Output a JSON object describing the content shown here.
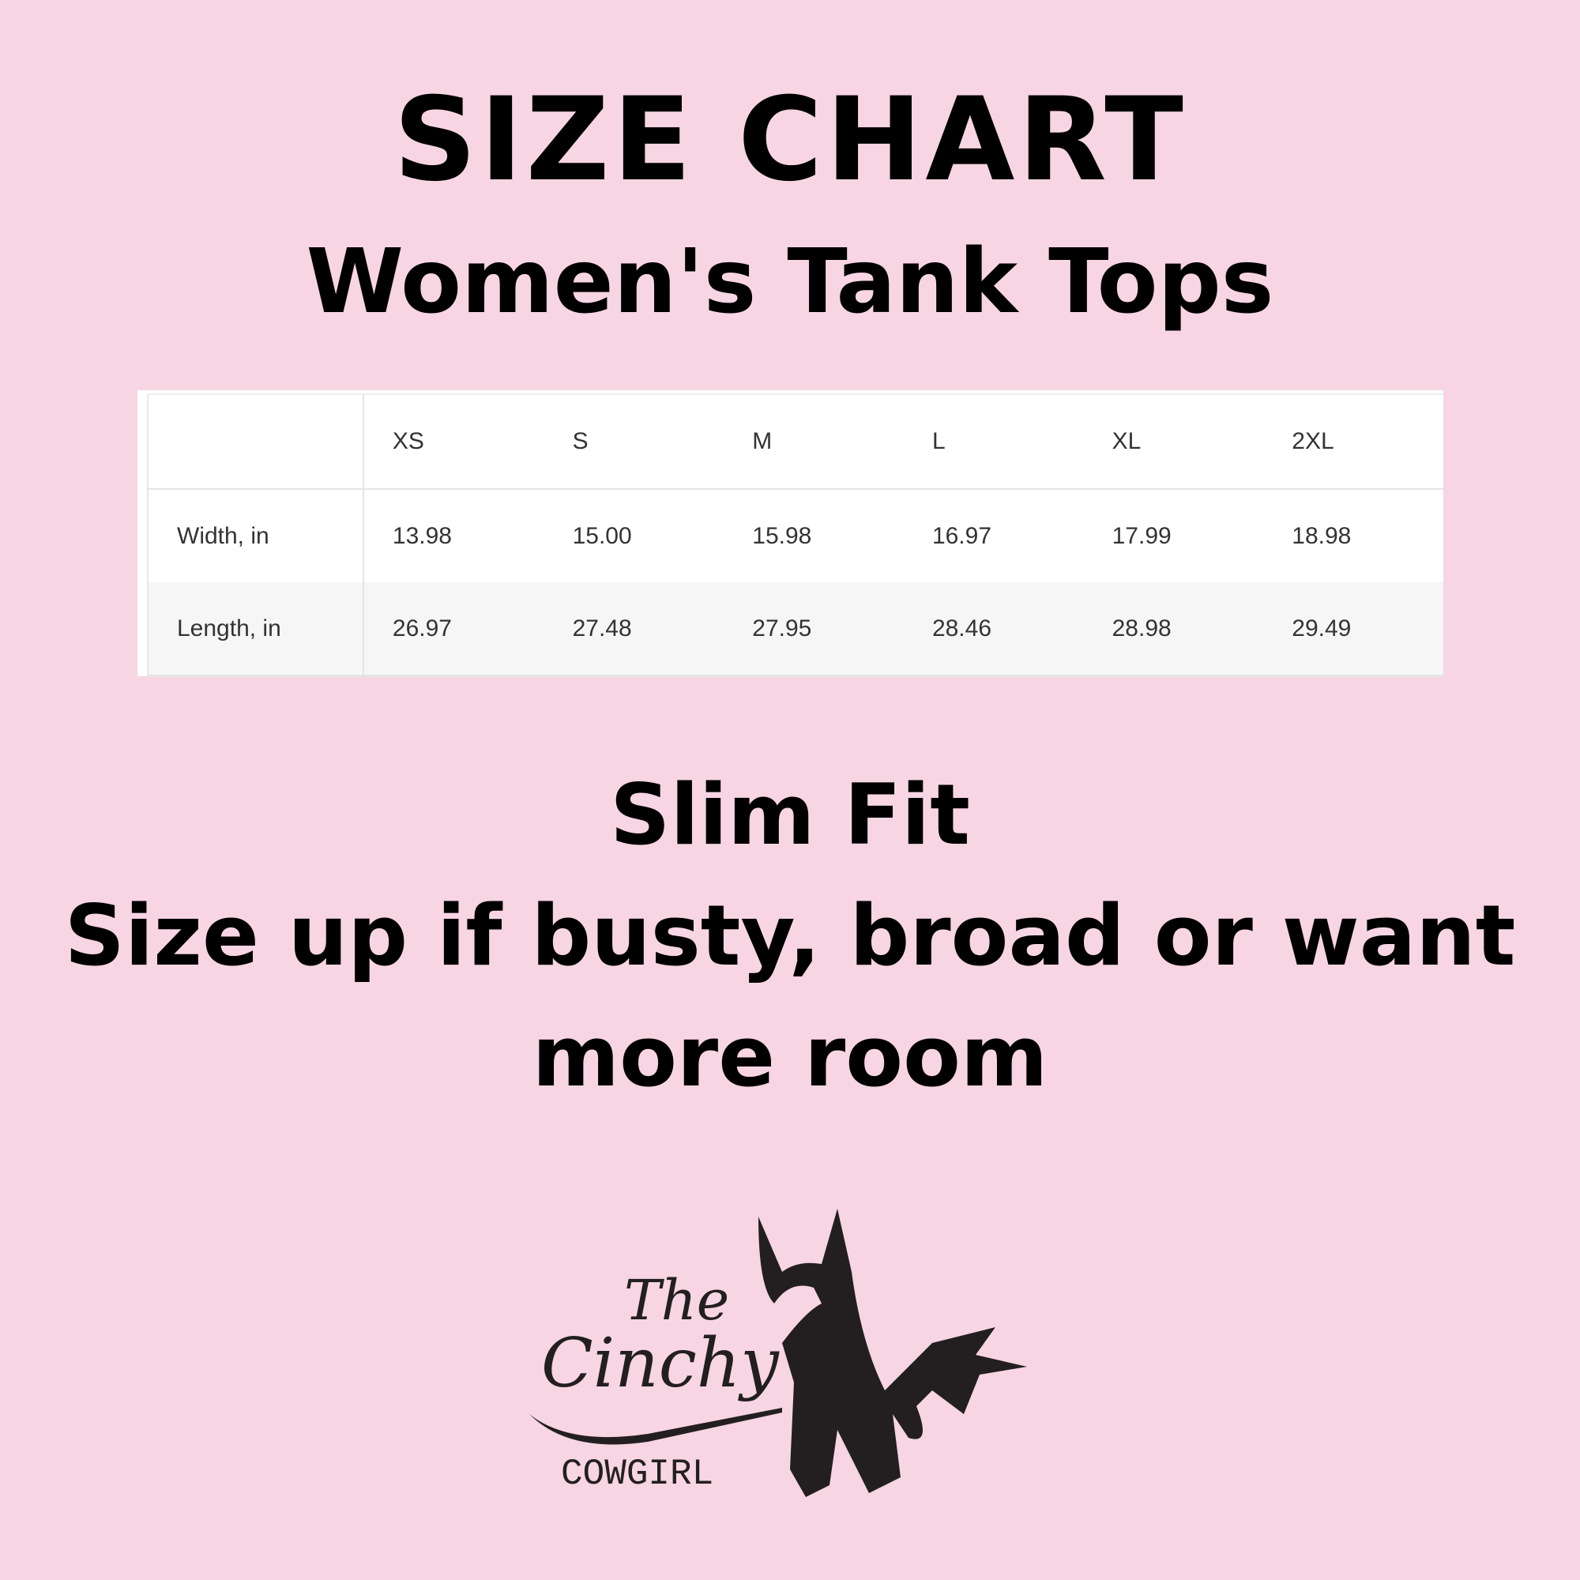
{
  "header": {
    "title": "SIZE CHART",
    "subtitle": "Women's Tank Tops"
  },
  "table": {
    "columns": [
      "",
      "XS",
      "S",
      "M",
      "L",
      "XL",
      "2XL"
    ],
    "rows": [
      {
        "label": "Width, in",
        "values": [
          "13.98",
          "15.00",
          "15.98",
          "16.97",
          "17.99",
          "18.98"
        ]
      },
      {
        "label": "Length, in",
        "values": [
          "26.97",
          "27.48",
          "27.95",
          "28.46",
          "28.98",
          "29.49"
        ]
      }
    ]
  },
  "notes": {
    "fit": "Slim Fit",
    "advice_line1": "Size up if busty, broad or want",
    "advice_line2": "more room"
  },
  "logo": {
    "line1": "The",
    "line2": "Cinchy",
    "line3": "COWGIRL",
    "icon": "horse-head-icon"
  },
  "colors": {
    "background": "#f7d5e3",
    "text": "#000000",
    "logo": "#231f20"
  }
}
